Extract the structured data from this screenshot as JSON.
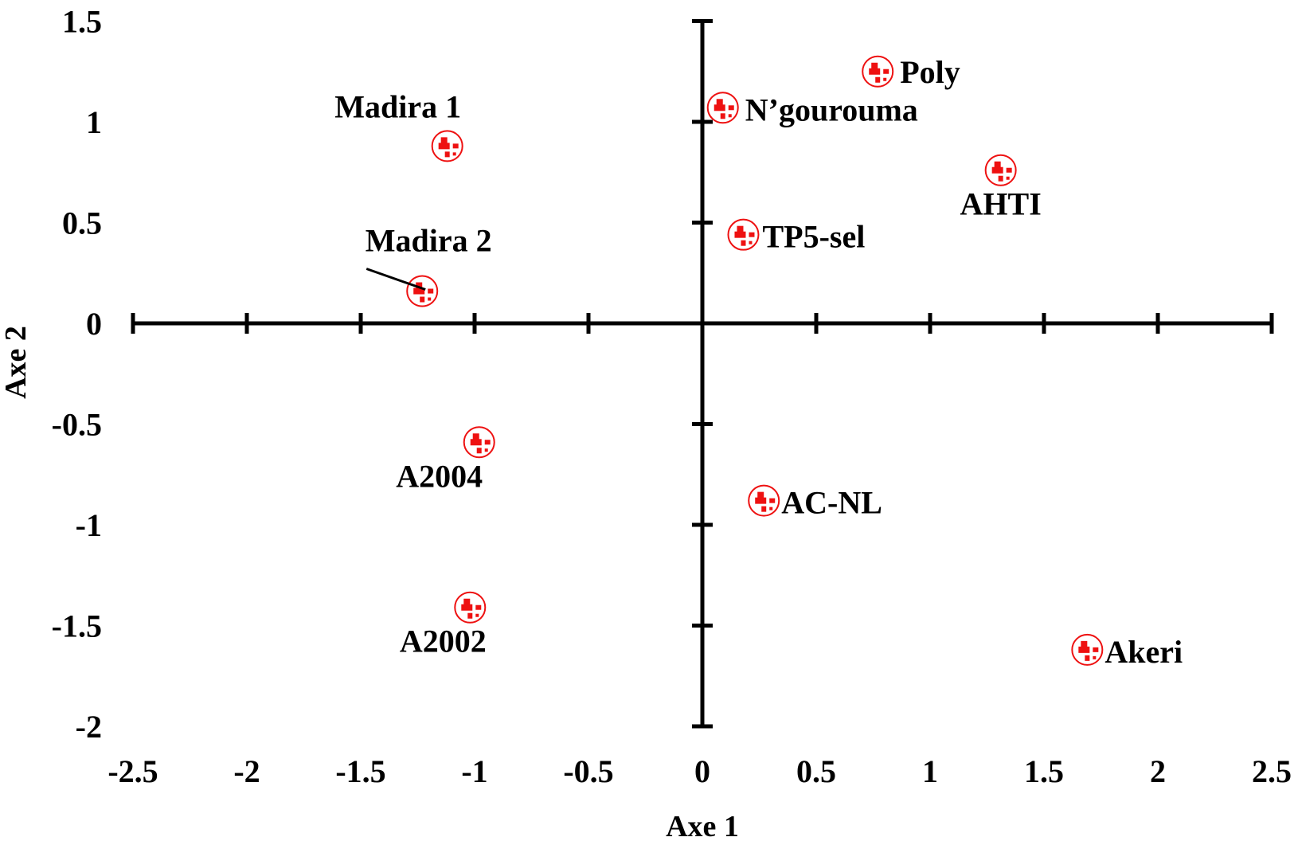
{
  "chart_data": {
    "type": "scatter",
    "title": "",
    "xlabel": "Axe 1",
    "ylabel": "Axe 2",
    "xlim": [
      -2.5,
      2.5
    ],
    "ylim": [
      -2,
      1.5
    ],
    "x_ticks": [
      -2.5,
      -2,
      -1.5,
      -1,
      -0.5,
      0,
      0.5,
      1,
      1.5,
      2,
      2.5
    ],
    "y_ticks": [
      -2,
      -1.5,
      -1,
      -0.5,
      0,
      0.5,
      1,
      1.5
    ],
    "x_tick_labels": [
      "-2.5",
      "-2",
      "-1.5",
      "-1",
      "-0.5",
      "0",
      "0.5",
      "1",
      "1.5",
      "2",
      "2.5"
    ],
    "y_tick_labels": [
      "-2",
      "-1.5",
      "-1",
      "-0.5",
      "0",
      "0.5",
      "1",
      "1.5"
    ],
    "grid": false,
    "marker_color": "#ee1111",
    "points": [
      {
        "label": "Poly",
        "x": 0.77,
        "y": 1.25
      },
      {
        "label": "N’gourouma",
        "x": 0.09,
        "y": 1.07
      },
      {
        "label": "Madira 1",
        "x": -1.12,
        "y": 0.88
      },
      {
        "label": "AHTI",
        "x": 1.31,
        "y": 0.76
      },
      {
        "label": "TP5-sel",
        "x": 0.18,
        "y": 0.44
      },
      {
        "label": "Madira 2",
        "x": -1.23,
        "y": 0.16
      },
      {
        "label": "A2004",
        "x": -0.98,
        "y": -0.59
      },
      {
        "label": "AC-NL",
        "x": 0.27,
        "y": -0.88
      },
      {
        "label": "A2002",
        "x": -1.02,
        "y": -1.41
      },
      {
        "label": "Akeri",
        "x": 1.69,
        "y": -1.62
      }
    ]
  }
}
